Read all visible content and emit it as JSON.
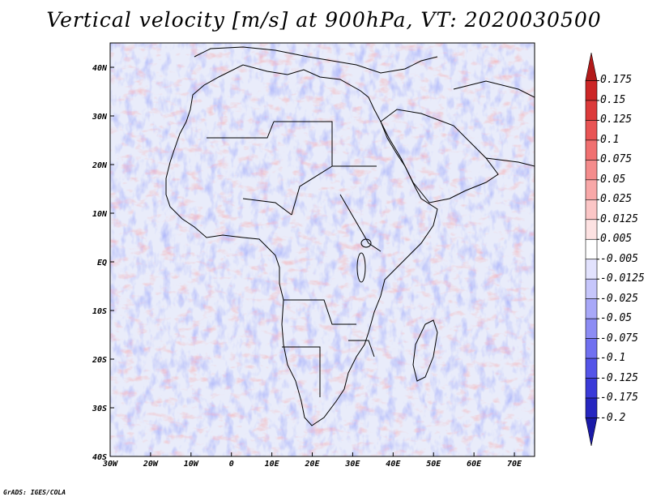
{
  "title": "Vertical velocity [m/s] at 900hPa, VT: 2020030500",
  "credit": "GrADS: IGES/COLA",
  "map": {
    "projection": "latlon",
    "lon_range": [
      -30,
      75
    ],
    "lat_range": [
      -40,
      45
    ],
    "x_ticks": [
      "30W",
      "20W",
      "10W",
      "0",
      "10E",
      "20E",
      "30E",
      "40E",
      "50E",
      "60E",
      "70E"
    ],
    "y_ticks": [
      "40N",
      "30N",
      "20N",
      "10N",
      "EQ",
      "10S",
      "20S",
      "30S",
      "40S"
    ],
    "field": "vertical velocity",
    "background_field_description_visible": false
  },
  "colorbar": {
    "levels": [
      "0.175",
      "0.15",
      "0.125",
      "0.1",
      "0.075",
      "0.05",
      "0.025",
      "0.0125",
      "0.005",
      "-0.005",
      "-0.0125",
      "-0.025",
      "-0.05",
      "-0.075",
      "-0.1",
      "-0.125",
      "-0.175",
      "-0.2"
    ],
    "colors": [
      "#b21a1a",
      "#cc2626",
      "#dc3a3a",
      "#e85454",
      "#f07070",
      "#f48c8c",
      "#f8a8a8",
      "#fbc6c6",
      "#fde2e2",
      "#ffffff",
      "#e2e2fd",
      "#c6c6fb",
      "#a8a8f8",
      "#8c8cf4",
      "#7070f0",
      "#5454e8",
      "#3a3ad8",
      "#2626c0",
      "#1a1aa8"
    ]
  },
  "ocean_color": "#e9ecfa"
}
